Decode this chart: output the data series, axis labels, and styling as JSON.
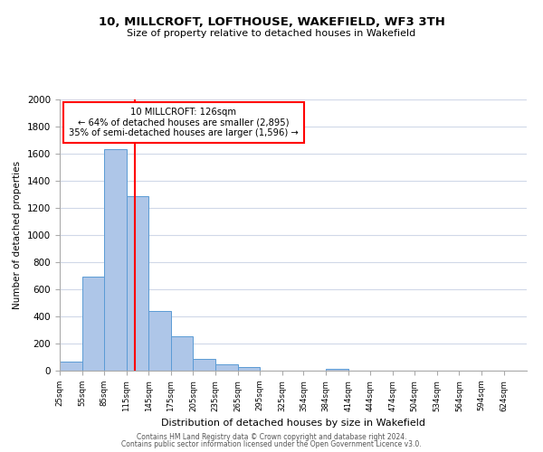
{
  "title": "10, MILLCROFT, LOFTHOUSE, WAKEFIELD, WF3 3TH",
  "subtitle": "Size of property relative to detached houses in Wakefield",
  "xlabel": "Distribution of detached houses by size in Wakefield",
  "ylabel": "Number of detached properties",
  "categories": [
    "25sqm",
    "55sqm",
    "85sqm",
    "115sqm",
    "145sqm",
    "175sqm",
    "205sqm",
    "235sqm",
    "265sqm",
    "295sqm",
    "325sqm",
    "354sqm",
    "384sqm",
    "414sqm",
    "444sqm",
    "474sqm",
    "504sqm",
    "534sqm",
    "564sqm",
    "594sqm",
    "624sqm"
  ],
  "bar_values": [
    65,
    695,
    1635,
    1285,
    440,
    255,
    90,
    50,
    25,
    0,
    0,
    0,
    15,
    0,
    0,
    0,
    0,
    0,
    0,
    0,
    0
  ],
  "bar_color": "#aec6e8",
  "bar_edge_color": "#5b9bd5",
  "vline_x": 126,
  "vline_color": "red",
  "annotation_title": "10 MILLCROFT: 126sqm",
  "annotation_line1": "← 64% of detached houses are smaller (2,895)",
  "annotation_line2": "35% of semi-detached houses are larger (1,596) →",
  "annotation_box_color": "white",
  "annotation_box_edge": "red",
  "ylim": [
    0,
    2000
  ],
  "yticks": [
    0,
    200,
    400,
    600,
    800,
    1000,
    1200,
    1400,
    1600,
    1800,
    2000
  ],
  "grid_color": "#d0d8e8",
  "footer_line1": "Contains HM Land Registry data © Crown copyright and database right 2024.",
  "footer_line2": "Contains public sector information licensed under the Open Government Licence v3.0.",
  "bin_width": 30
}
